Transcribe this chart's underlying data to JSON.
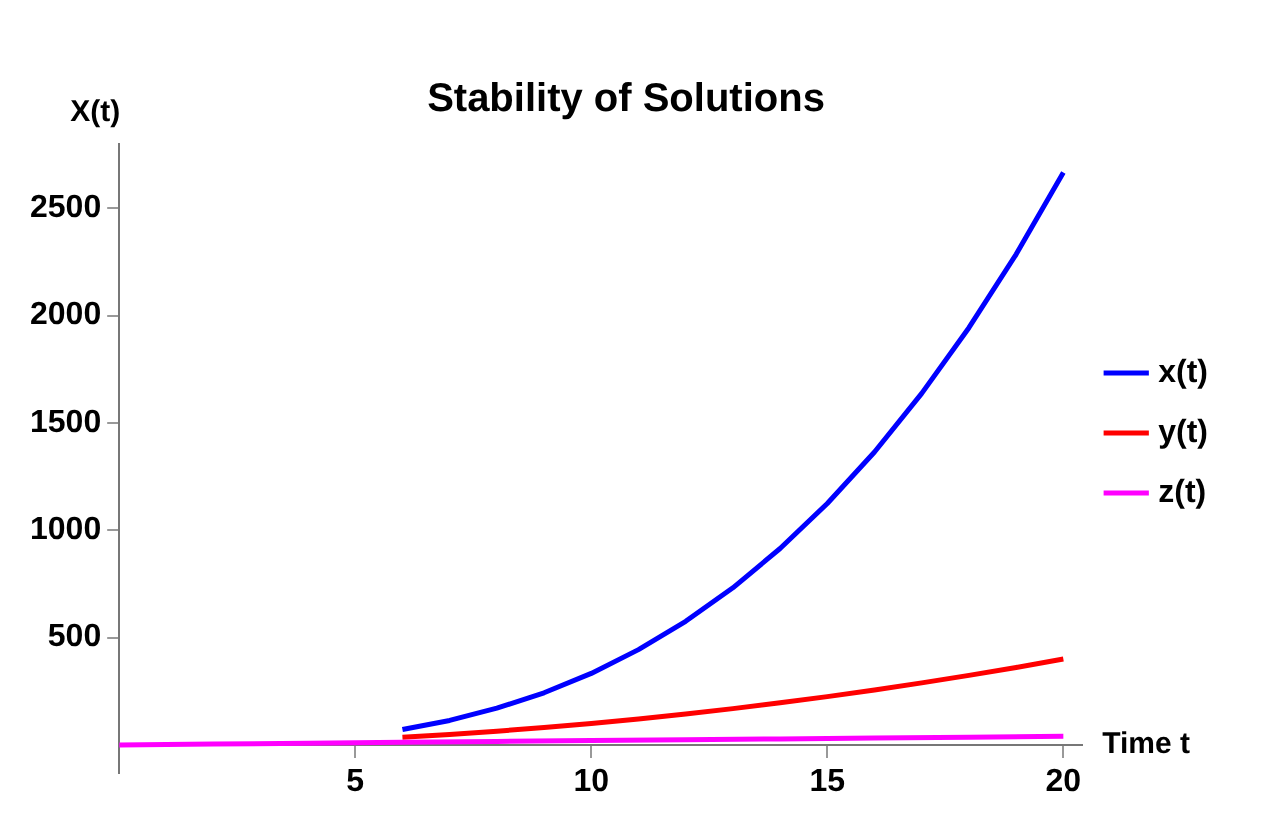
{
  "chart_data": {
    "type": "line",
    "title": "Stability of Solutions",
    "xlabel": "Time t",
    "ylabel": "X(t)",
    "series": [
      {
        "name": "x(t)",
        "color": "#0000ff",
        "x": [
          6,
          7,
          8,
          9,
          10,
          11,
          12,
          13,
          14,
          15,
          16,
          17,
          18,
          19,
          20
        ],
        "values": [
          72,
          114,
          171,
          243,
          333,
          444,
          576,
          732,
          915,
          1125,
          1365,
          1638,
          1944,
          2286,
          2667
        ]
      },
      {
        "name": "y(t)",
        "color": "#ff0000",
        "x": [
          6,
          7,
          8,
          9,
          10,
          11,
          12,
          13,
          14,
          15,
          16,
          17,
          18,
          19,
          20
        ],
        "values": [
          36,
          49,
          64,
          81,
          100,
          121,
          144,
          169,
          196,
          225,
          256,
          289,
          324,
          361,
          400
        ]
      },
      {
        "name": "z(t)",
        "color": "#ff00ff",
        "x": [
          0,
          2,
          4,
          6,
          8,
          10,
          12,
          14,
          16,
          18,
          20
        ],
        "values": [
          0,
          4,
          8,
          12,
          16,
          20,
          24,
          28,
          32,
          36,
          40
        ]
      }
    ],
    "xlim": [
      0,
      20.4
    ],
    "ylim": [
      -130,
      2800
    ],
    "xticks": [
      5,
      10,
      15,
      20
    ],
    "yticks": [
      500,
      1000,
      1500,
      2000,
      2500
    ],
    "grid": false,
    "legend": "right",
    "marker": "none",
    "line_style": "solid"
  }
}
